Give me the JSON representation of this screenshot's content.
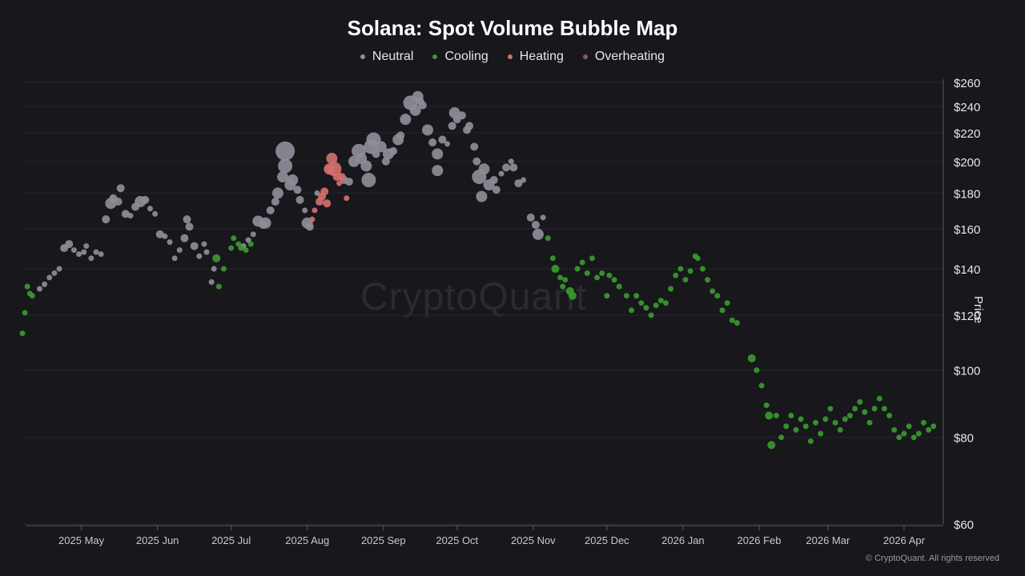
{
  "chart_data": {
    "type": "scatter",
    "title": "Solana: Spot Volume Bubble Map",
    "ylabel": "Price",
    "y_scale": "log",
    "ylim": [
      60,
      260
    ],
    "y_ticks": [
      60,
      80,
      100,
      120,
      140,
      160,
      180,
      200,
      220,
      240,
      260
    ],
    "y_tick_labels": [
      "$60",
      "$80",
      "$100",
      "$120",
      "$140",
      "$160",
      "$180",
      "$200",
      "$220",
      "$240",
      "$260"
    ],
    "xlim": [
      "2025-04-07",
      "2026-04-17"
    ],
    "x_ticks": [
      "2025-05-01",
      "2025-06-01",
      "2025-07-01",
      "2025-08-01",
      "2025-09-01",
      "2025-10-01",
      "2025-11-01",
      "2025-12-01",
      "2026-01-01",
      "2026-02-01",
      "2026-03-01",
      "2026-04-01"
    ],
    "x_tick_labels": [
      "2025 May",
      "2025 Jun",
      "2025 Jul",
      "2025 Aug",
      "2025 Sep",
      "2025 Oct",
      "2025 Nov",
      "2025 Dec",
      "2026 Jan",
      "2026 Feb",
      "2026 Mar",
      "2026 Apr"
    ],
    "legend_position": "top-center",
    "grid": true,
    "series": [
      {
        "name": "Neutral",
        "color": "#8e8e98",
        "points": [
          [
            "2025-04-14",
            131,
            1
          ],
          [
            "2025-04-16",
            133,
            1
          ],
          [
            "2025-04-18",
            136,
            1
          ],
          [
            "2025-04-20",
            138,
            1
          ],
          [
            "2025-04-22",
            140,
            1
          ],
          [
            "2025-04-24",
            150,
            2
          ],
          [
            "2025-04-26",
            152,
            2
          ],
          [
            "2025-04-28",
            149,
            1
          ],
          [
            "2025-04-30",
            147,
            1
          ],
          [
            "2025-05-02",
            148,
            1
          ],
          [
            "2025-05-03",
            151,
            1
          ],
          [
            "2025-05-05",
            145,
            1
          ],
          [
            "2025-05-07",
            148,
            1
          ],
          [
            "2025-05-09",
            147,
            1
          ],
          [
            "2025-05-11",
            165,
            2
          ],
          [
            "2025-05-13",
            174,
            3
          ],
          [
            "2025-05-14",
            177,
            2
          ],
          [
            "2025-05-16",
            175,
            2
          ],
          [
            "2025-05-17",
            183,
            2
          ],
          [
            "2025-05-19",
            168,
            2
          ],
          [
            "2025-05-21",
            167,
            1
          ],
          [
            "2025-05-23",
            172,
            2
          ],
          [
            "2025-05-25",
            175,
            3
          ],
          [
            "2025-05-27",
            176,
            2
          ],
          [
            "2025-05-29",
            171,
            1
          ],
          [
            "2025-05-31",
            168,
            1
          ],
          [
            "2025-06-02",
            157,
            2
          ],
          [
            "2025-06-04",
            156,
            1
          ],
          [
            "2025-06-06",
            153,
            1
          ],
          [
            "2025-06-08",
            145,
            1
          ],
          [
            "2025-06-10",
            149,
            1
          ],
          [
            "2025-06-12",
            155,
            2
          ],
          [
            "2025-06-13",
            165,
            2
          ],
          [
            "2025-06-14",
            161,
            2
          ],
          [
            "2025-06-16",
            151,
            2
          ],
          [
            "2025-06-18",
            146,
            1
          ],
          [
            "2025-06-20",
            152,
            1
          ],
          [
            "2025-06-21",
            148,
            1
          ],
          [
            "2025-06-23",
            134,
            1
          ],
          [
            "2025-06-24",
            140,
            1
          ],
          [
            "2025-07-06",
            151,
            1
          ],
          [
            "2025-07-08",
            154,
            1
          ],
          [
            "2025-07-10",
            157,
            1
          ],
          [
            "2025-07-12",
            164,
            3
          ],
          [
            "2025-07-14",
            162,
            2
          ],
          [
            "2025-07-15",
            163,
            3
          ],
          [
            "2025-07-17",
            170,
            2
          ],
          [
            "2025-07-19",
            175,
            2
          ],
          [
            "2025-07-20",
            180,
            3
          ],
          [
            "2025-07-22",
            190,
            3
          ],
          [
            "2025-07-23",
            197,
            4
          ],
          [
            "2025-07-23",
            207,
            5
          ],
          [
            "2025-07-25",
            185,
            3
          ],
          [
            "2025-07-26",
            188,
            3
          ],
          [
            "2025-07-28",
            182,
            2
          ],
          [
            "2025-07-29",
            176,
            2
          ],
          [
            "2025-07-31",
            170,
            1
          ],
          [
            "2025-08-01",
            163,
            3
          ],
          [
            "2025-08-02",
            161,
            2
          ],
          [
            "2025-08-05",
            180,
            1
          ],
          [
            "2025-08-16",
            188,
            2
          ],
          [
            "2025-08-18",
            187,
            2
          ],
          [
            "2025-08-20",
            200,
            3
          ],
          [
            "2025-08-22",
            207,
            4
          ],
          [
            "2025-08-23",
            202,
            3
          ],
          [
            "2025-08-25",
            197,
            3
          ],
          [
            "2025-08-26",
            188,
            4
          ],
          [
            "2025-08-27",
            210,
            4
          ],
          [
            "2025-08-28",
            215,
            4
          ],
          [
            "2025-08-29",
            205,
            2
          ],
          [
            "2025-08-31",
            210,
            3
          ],
          [
            "2025-09-02",
            200,
            2
          ],
          [
            "2025-09-03",
            205,
            3
          ],
          [
            "2025-09-05",
            207,
            2
          ],
          [
            "2025-09-07",
            215,
            3
          ],
          [
            "2025-09-08",
            218,
            2
          ],
          [
            "2025-09-10",
            230,
            3
          ],
          [
            "2025-09-12",
            243,
            4
          ],
          [
            "2025-09-14",
            237,
            3
          ],
          [
            "2025-09-15",
            248,
            3
          ],
          [
            "2025-09-16",
            244,
            2
          ],
          [
            "2025-09-17",
            241,
            2
          ],
          [
            "2025-09-19",
            222,
            3
          ],
          [
            "2025-09-21",
            213,
            2
          ],
          [
            "2025-09-23",
            205,
            3
          ],
          [
            "2025-09-23",
            194,
            3
          ],
          [
            "2025-09-25",
            215,
            2
          ],
          [
            "2025-09-27",
            212,
            1
          ],
          [
            "2025-09-29",
            225,
            2
          ],
          [
            "2025-09-30",
            235,
            3
          ],
          [
            "2025-10-01",
            230,
            2
          ],
          [
            "2025-10-03",
            233,
            2
          ],
          [
            "2025-10-05",
            222,
            2
          ],
          [
            "2025-10-06",
            225,
            2
          ],
          [
            "2025-10-08",
            210,
            2
          ],
          [
            "2025-10-09",
            200,
            2
          ],
          [
            "2025-10-10",
            190,
            4
          ],
          [
            "2025-10-11",
            178,
            3
          ],
          [
            "2025-10-12",
            195,
            3
          ],
          [
            "2025-10-14",
            185,
            3
          ],
          [
            "2025-10-16",
            188,
            2
          ],
          [
            "2025-10-17",
            182,
            2
          ],
          [
            "2025-10-19",
            192,
            1
          ],
          [
            "2025-10-21",
            196,
            2
          ],
          [
            "2025-10-23",
            200,
            1
          ],
          [
            "2025-10-24",
            196,
            2
          ],
          [
            "2025-10-26",
            186,
            2
          ],
          [
            "2025-10-28",
            188,
            1
          ],
          [
            "2025-10-31",
            166,
            2
          ],
          [
            "2025-11-02",
            162,
            2
          ],
          [
            "2025-11-03",
            157,
            3
          ],
          [
            "2025-11-05",
            166,
            1
          ]
        ]
      },
      {
        "name": "Cooling",
        "color": "#3a9a2e",
        "points": [
          [
            "2025-04-07",
            113,
            1
          ],
          [
            "2025-04-08",
            121,
            1
          ],
          [
            "2025-04-09",
            132,
            1
          ],
          [
            "2025-04-10",
            129,
            1
          ],
          [
            "2025-04-11",
            128,
            1
          ],
          [
            "2025-06-25",
            145,
            2
          ],
          [
            "2025-06-26",
            132,
            1
          ],
          [
            "2025-06-28",
            140,
            1
          ],
          [
            "2025-07-01",
            150,
            1
          ],
          [
            "2025-07-02",
            155,
            1
          ],
          [
            "2025-07-04",
            152,
            1
          ],
          [
            "2025-07-05",
            150,
            1
          ],
          [
            "2025-07-07",
            149,
            1
          ],
          [
            "2025-07-09",
            152,
            1
          ],
          [
            "2025-11-07",
            155,
            1
          ],
          [
            "2025-11-09",
            145,
            1
          ],
          [
            "2025-11-10",
            140,
            2
          ],
          [
            "2025-11-12",
            136,
            1
          ],
          [
            "2025-11-13",
            132,
            1
          ],
          [
            "2025-11-14",
            135,
            1
          ],
          [
            "2025-11-16",
            130,
            2
          ],
          [
            "2025-11-17",
            128,
            2
          ],
          [
            "2025-11-19",
            140,
            1
          ],
          [
            "2025-11-21",
            143,
            1
          ],
          [
            "2025-11-23",
            138,
            1
          ],
          [
            "2025-11-25",
            145,
            1
          ],
          [
            "2025-11-27",
            136,
            1
          ],
          [
            "2025-11-29",
            138,
            1
          ],
          [
            "2025-12-01",
            128,
            1
          ],
          [
            "2025-12-02",
            137,
            1
          ],
          [
            "2025-12-04",
            135,
            1
          ],
          [
            "2025-12-06",
            132,
            1
          ],
          [
            "2025-12-09",
            128,
            1
          ],
          [
            "2025-12-11",
            122,
            1
          ],
          [
            "2025-12-13",
            128,
            1
          ],
          [
            "2025-12-15",
            125,
            1
          ],
          [
            "2025-12-17",
            123,
            1
          ],
          [
            "2025-12-19",
            120,
            1
          ],
          [
            "2025-12-21",
            124,
            1
          ],
          [
            "2025-12-23",
            126,
            1
          ],
          [
            "2025-12-25",
            125,
            1
          ],
          [
            "2025-12-27",
            131,
            1
          ],
          [
            "2025-12-29",
            137,
            1
          ],
          [
            "2025-12-31",
            140,
            1
          ],
          [
            "2026-01-02",
            135,
            1
          ],
          [
            "2026-01-04",
            139,
            1
          ],
          [
            "2026-01-06",
            146,
            1
          ],
          [
            "2026-01-07",
            145,
            1
          ],
          [
            "2026-01-09",
            140,
            1
          ],
          [
            "2026-01-11",
            135,
            1
          ],
          [
            "2026-01-13",
            130,
            1
          ],
          [
            "2026-01-15",
            128,
            1
          ],
          [
            "2026-01-17",
            122,
            1
          ],
          [
            "2026-01-19",
            125,
            1
          ],
          [
            "2026-01-21",
            118,
            1
          ],
          [
            "2026-01-23",
            117,
            1
          ],
          [
            "2026-01-29",
            104,
            2
          ],
          [
            "2026-01-31",
            100,
            1
          ],
          [
            "2026-02-02",
            95,
            1
          ],
          [
            "2026-02-04",
            89,
            1
          ],
          [
            "2026-02-05",
            86,
            2
          ],
          [
            "2026-02-06",
            78,
            2
          ],
          [
            "2026-02-08",
            86,
            1
          ],
          [
            "2026-02-10",
            80,
            1
          ],
          [
            "2026-02-12",
            83,
            1
          ],
          [
            "2026-02-14",
            86,
            1
          ],
          [
            "2026-02-16",
            82,
            1
          ],
          [
            "2026-02-18",
            85,
            1
          ],
          [
            "2026-02-20",
            83,
            1
          ],
          [
            "2026-02-22",
            79,
            1
          ],
          [
            "2026-02-24",
            84,
            1
          ],
          [
            "2026-02-26",
            81,
            1
          ],
          [
            "2026-02-28",
            85,
            1
          ],
          [
            "2026-03-02",
            88,
            1
          ],
          [
            "2026-03-04",
            84,
            1
          ],
          [
            "2026-03-06",
            82,
            1
          ],
          [
            "2026-03-08",
            85,
            1
          ],
          [
            "2026-03-10",
            86,
            1
          ],
          [
            "2026-03-12",
            88,
            1
          ],
          [
            "2026-03-14",
            90,
            1
          ],
          [
            "2026-03-16",
            87,
            1
          ],
          [
            "2026-03-18",
            84,
            1
          ],
          [
            "2026-03-20",
            88,
            1
          ],
          [
            "2026-03-22",
            91,
            1
          ],
          [
            "2026-03-24",
            88,
            1
          ],
          [
            "2026-03-26",
            86,
            1
          ],
          [
            "2026-03-28",
            82,
            1
          ],
          [
            "2026-03-30",
            80,
            1
          ],
          [
            "2026-04-01",
            81,
            1
          ],
          [
            "2026-04-03",
            83,
            1
          ],
          [
            "2026-04-05",
            80,
            1
          ],
          [
            "2026-04-07",
            81,
            1
          ],
          [
            "2026-04-09",
            84,
            1
          ],
          [
            "2026-04-11",
            82,
            1
          ],
          [
            "2026-04-13",
            83,
            1
          ]
        ]
      },
      {
        "name": "Heating",
        "color": "#d1706c",
        "points": [
          [
            "2025-08-03",
            165,
            1
          ],
          [
            "2025-08-04",
            170,
            1
          ],
          [
            "2025-08-06",
            175,
            2
          ],
          [
            "2025-08-07",
            178,
            2
          ],
          [
            "2025-08-08",
            181,
            2
          ],
          [
            "2025-08-09",
            174,
            2
          ],
          [
            "2025-08-10",
            195,
            3
          ],
          [
            "2025-08-11",
            202,
            3
          ],
          [
            "2025-08-12",
            195,
            4
          ],
          [
            "2025-08-13",
            190,
            2
          ],
          [
            "2025-08-14",
            186,
            1
          ],
          [
            "2025-08-15",
            190,
            2
          ],
          [
            "2025-08-17",
            177,
            1
          ]
        ]
      },
      {
        "name": "Overheating",
        "color": "#8a5a58",
        "points": []
      }
    ]
  }
}
